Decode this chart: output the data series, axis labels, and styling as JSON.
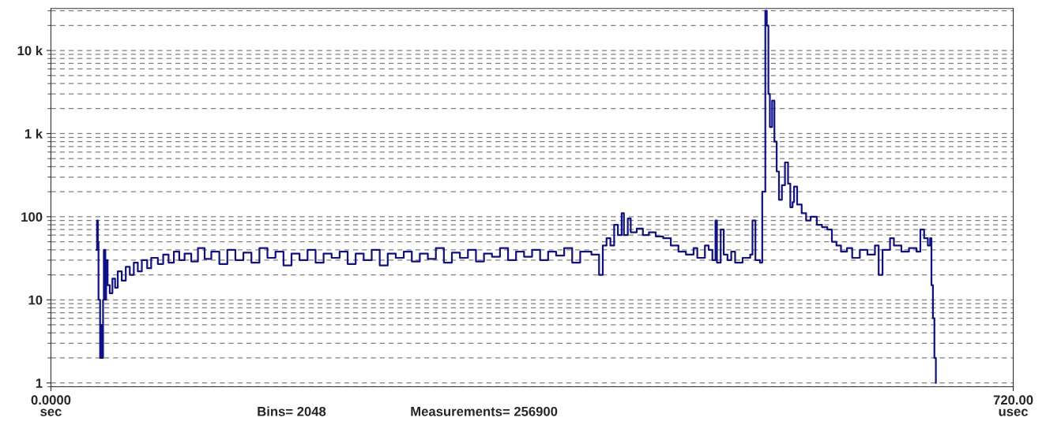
{
  "chart_data": {
    "type": "step",
    "x": [
      33.9,
      34.5,
      35.1,
      35.6,
      36.8,
      37.9,
      38.5,
      39.0,
      39.6,
      40.7,
      41.3,
      42.4,
      44,
      46,
      48,
      50,
      53,
      56,
      59,
      62,
      65,
      68,
      72,
      75,
      80,
      84,
      88,
      92,
      96,
      100,
      105,
      110,
      115,
      120,
      126,
      132,
      138,
      144,
      150,
      156,
      162,
      168,
      174,
      180,
      186,
      192,
      198,
      204,
      210,
      216,
      222,
      228,
      234,
      240,
      246,
      252,
      258,
      264,
      270,
      276,
      282,
      288,
      294,
      300,
      306,
      312,
      318,
      324,
      330,
      336,
      342,
      348,
      354,
      360,
      366,
      372,
      378,
      384,
      390,
      396,
      404.4,
      410.1,
      412.9,
      415.7,
      418.6,
      421.4,
      424.2,
      427.0,
      428.7,
      431.6,
      433.8,
      438.3,
      442.9,
      447.4,
      452.5,
      458.1,
      463.8,
      469.5,
      475.1,
      480.8,
      483.6,
      489.3,
      492.1,
      494.9,
      497.2,
      498.3,
      501.1,
      503.4,
      506.2,
      509.0,
      511.9,
      517.5,
      523.2,
      524.9,
      527.1,
      530.5,
      532.2,
      534.5,
      535.6,
      536.8,
      537.9,
      539.6,
      541.3,
      543.0,
      544.7,
      546.9,
      549.2,
      551.5,
      553.2,
      554.9,
      556.0,
      558.3,
      561.7,
      565.0,
      568.4,
      573.0,
      576.9,
      580.9,
      584.3,
      587.7,
      591.1,
      595.6,
      599.5,
      605.2,
      610.9,
      616.5,
      619.3,
      622.2,
      627.8,
      630.7,
      636.3,
      642.0,
      647.6,
      650.5,
      653.3,
      656.1,
      657.8,
      658.8,
      659.9,
      661.0,
      662.1
    ],
    "series": [
      {
        "color": "#10108a",
        "values": [
          40,
          90,
          50,
          10,
          2,
          5,
          2,
          10,
          40,
          10,
          30,
          15,
          12,
          18,
          14,
          22,
          17,
          25,
          20,
          28,
          22,
          30,
          24,
          32,
          27,
          35,
          28,
          38,
          30,
          36,
          29,
          42,
          31,
          38,
          27,
          40,
          30,
          37,
          28,
          42,
          32,
          38,
          26,
          36,
          30,
          40,
          28,
          36,
          32,
          38,
          27,
          36,
          30,
          40,
          26,
          36,
          32,
          38,
          29,
          36,
          31,
          42,
          28,
          37,
          32,
          40,
          29,
          36,
          33,
          42,
          30,
          38,
          33,
          40,
          30,
          38,
          34,
          42,
          28,
          38,
          35,
          20,
          45,
          55,
          45,
          80,
          60,
          110,
          60,
          95,
          65,
          72,
          60,
          65,
          58,
          55,
          45,
          38,
          35,
          42,
          32,
          45,
          40,
          30,
          90,
          28,
          70,
          35,
          30,
          38,
          28,
          32,
          35,
          90,
          30,
          28,
          200,
          30000,
          20000,
          3000,
          1200,
          2500,
          800,
          350,
          160,
          240,
          450,
          250,
          130,
          150,
          230,
          140,
          110,
          90,
          100,
          80,
          75,
          70,
          50,
          45,
          38,
          42,
          32,
          40,
          35,
          45,
          20,
          40,
          55,
          45,
          38,
          42,
          38,
          70,
          55,
          45,
          55,
          15,
          6,
          2,
          1
        ]
      }
    ],
    "log": true,
    "ylim": [
      0.9,
      32000
    ],
    "yticks": [
      1,
      10,
      100,
      {
        "value": 1000,
        "label": "1 k"
      },
      {
        "value": 10000,
        "label": "10 k"
      }
    ],
    "xlim": [
      0,
      720
    ],
    "xticks": [
      {
        "value": 0,
        "label": "0.0000"
      },
      {
        "value": 720,
        "label": "720.00"
      }
    ],
    "grid": "y",
    "annotations": [
      "sec",
      "usec",
      "Bins= 2048",
      "Measurements= 256900"
    ]
  }
}
